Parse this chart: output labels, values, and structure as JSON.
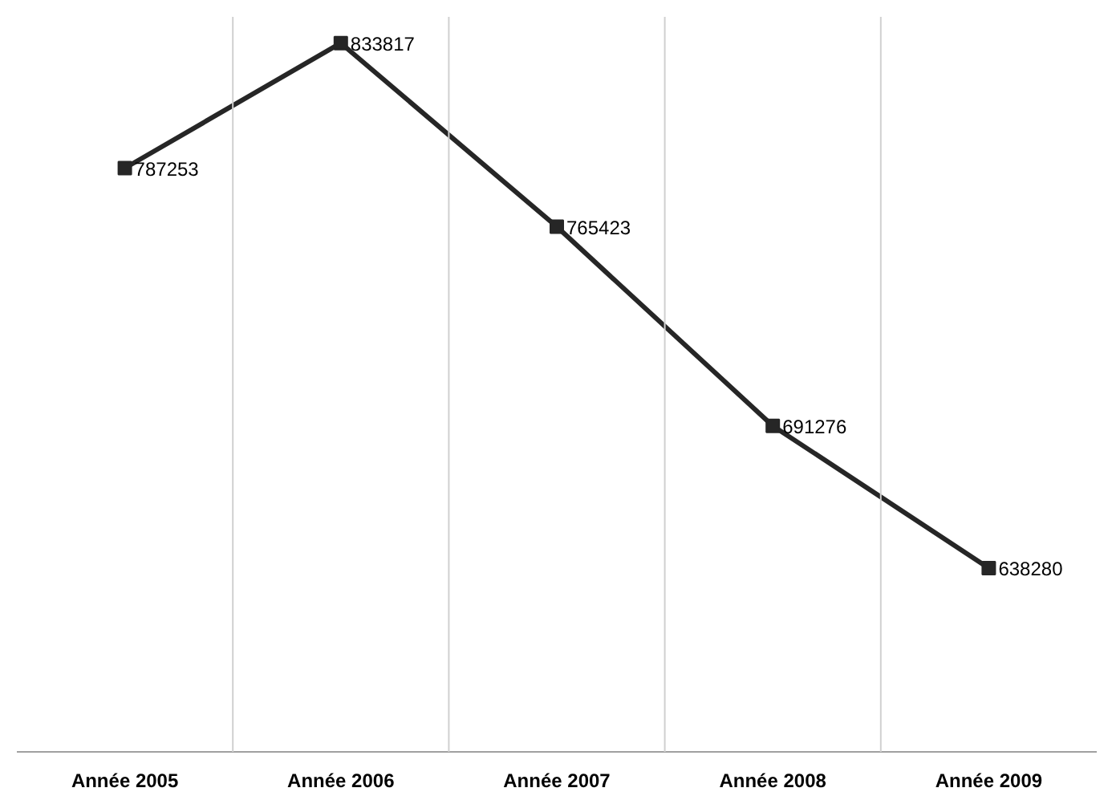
{
  "chart_data": {
    "type": "line",
    "categories": [
      "Année 2005",
      "Année 2006",
      "Année 2007",
      "Année 2008",
      "Année 2009"
    ],
    "series": [
      {
        "color": "#262626",
        "values": [
          787253,
          833817,
          765423,
          691276,
          638280
        ]
      }
    ],
    "data_labels": true,
    "marker": "square",
    "line_style": "solid",
    "grid": "x"
  }
}
